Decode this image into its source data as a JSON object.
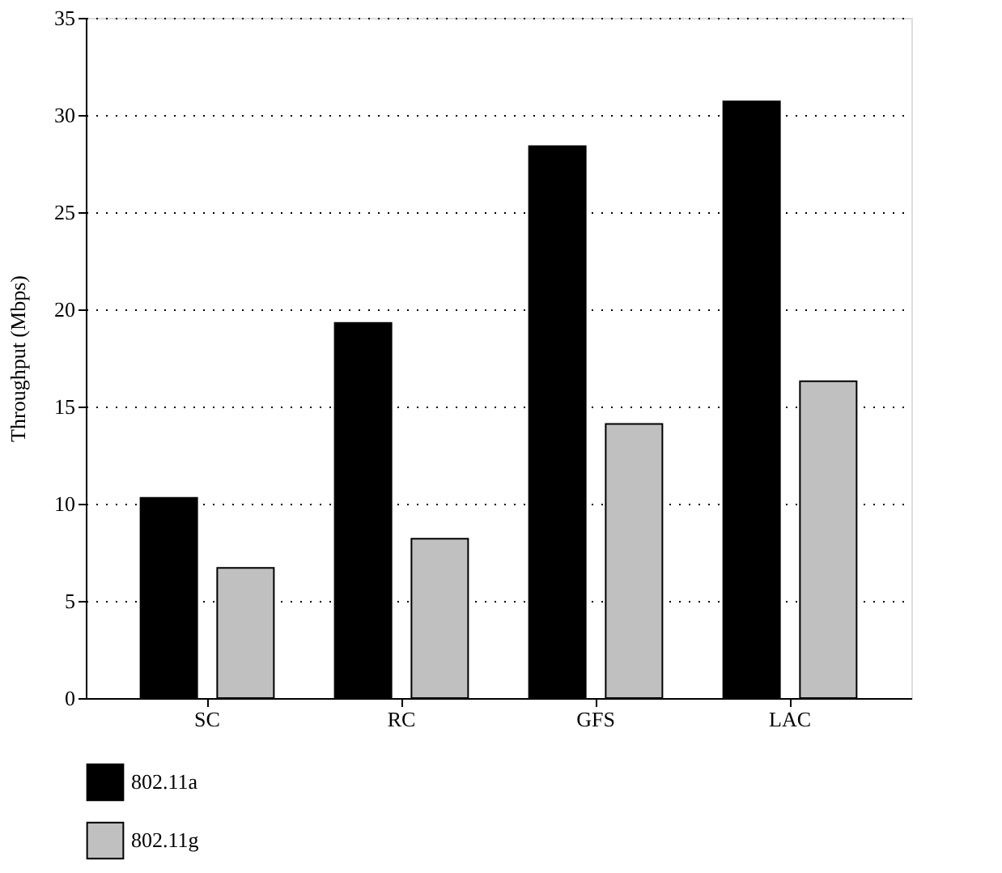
{
  "chart_data": {
    "type": "bar",
    "ylabel": "Throughput (Mbps)",
    "categories": [
      "SC",
      "RC",
      "GFS",
      "LAC"
    ],
    "series": [
      {
        "name": "802.11a",
        "color": "#000000",
        "values": [
          10.3,
          19.3,
          28.4,
          30.7
        ]
      },
      {
        "name": "802.11g",
        "color": "#c0c0c0",
        "values": [
          6.7,
          8.2,
          14.1,
          16.3
        ]
      }
    ],
    "ylim": [
      0,
      35
    ],
    "yticks": [
      0,
      5,
      10,
      15,
      20,
      25,
      30,
      35
    ],
    "grid": "y",
    "legend": "bottom left"
  }
}
